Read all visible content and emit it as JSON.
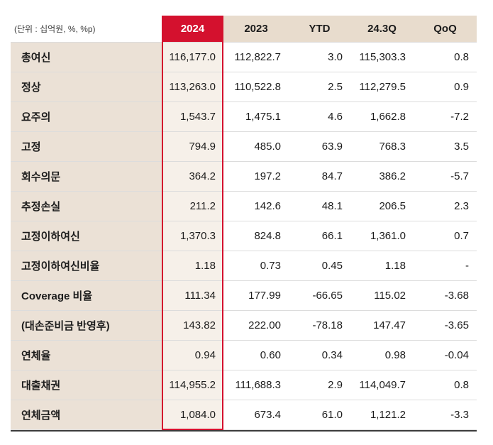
{
  "unit_label": "(단위 : 십억원, %, %p)",
  "chart_data": {
    "type": "table",
    "columns": [
      "2024",
      "2023",
      "YTD",
      "24.3Q",
      "QoQ"
    ],
    "highlight_column": "2024",
    "rows": [
      {
        "label": "총여신",
        "cells": [
          "116,177.0",
          "112,822.7",
          "3.0",
          "115,303.3",
          "0.8"
        ]
      },
      {
        "label": "정상",
        "cells": [
          "113,263.0",
          "110,522.8",
          "2.5",
          "112,279.5",
          "0.9"
        ]
      },
      {
        "label": "요주의",
        "cells": [
          "1,543.7",
          "1,475.1",
          "4.6",
          "1,662.8",
          "-7.2"
        ]
      },
      {
        "label": "고정",
        "cells": [
          "794.9",
          "485.0",
          "63.9",
          "768.3",
          "3.5"
        ]
      },
      {
        "label": "회수의문",
        "cells": [
          "364.2",
          "197.2",
          "84.7",
          "386.2",
          "-5.7"
        ]
      },
      {
        "label": "추정손실",
        "cells": [
          "211.2",
          "142.6",
          "48.1",
          "206.5",
          "2.3"
        ]
      },
      {
        "label": "고정이하여신",
        "cells": [
          "1,370.3",
          "824.8",
          "66.1",
          "1,361.0",
          "0.7"
        ]
      },
      {
        "label": "고정이하여신비율",
        "cells": [
          "1.18",
          "0.73",
          "0.45",
          "1.18",
          "-"
        ]
      },
      {
        "label": "Coverage 비율",
        "cells": [
          "111.34",
          "177.99",
          "-66.65",
          "115.02",
          "-3.68"
        ]
      },
      {
        "label": "(대손준비금 반영후)",
        "cells": [
          "143.82",
          "222.00",
          "-78.18",
          "147.47",
          "-3.65"
        ]
      },
      {
        "label": "연체율",
        "cells": [
          "0.94",
          "0.60",
          "0.34",
          "0.98",
          "-0.04"
        ]
      },
      {
        "label": "대출채권",
        "cells": [
          "114,955.2",
          "111,688.3",
          "2.9",
          "114,049.7",
          "0.8"
        ]
      },
      {
        "label": "연체금액",
        "cells": [
          "1,084.0",
          "673.4",
          "61.0",
          "1,121.2",
          "-3.3"
        ]
      }
    ]
  },
  "colors": {
    "accent_red": "#d4112e",
    "header_beige": "#e8dccd",
    "label_beige": "#ebe1d6",
    "highlight_column_bg": "#f6f0e9",
    "row_separator": "#dcdcdc",
    "table_bottom_border": "#3b3b3b",
    "text": "#1c1c1c"
  }
}
